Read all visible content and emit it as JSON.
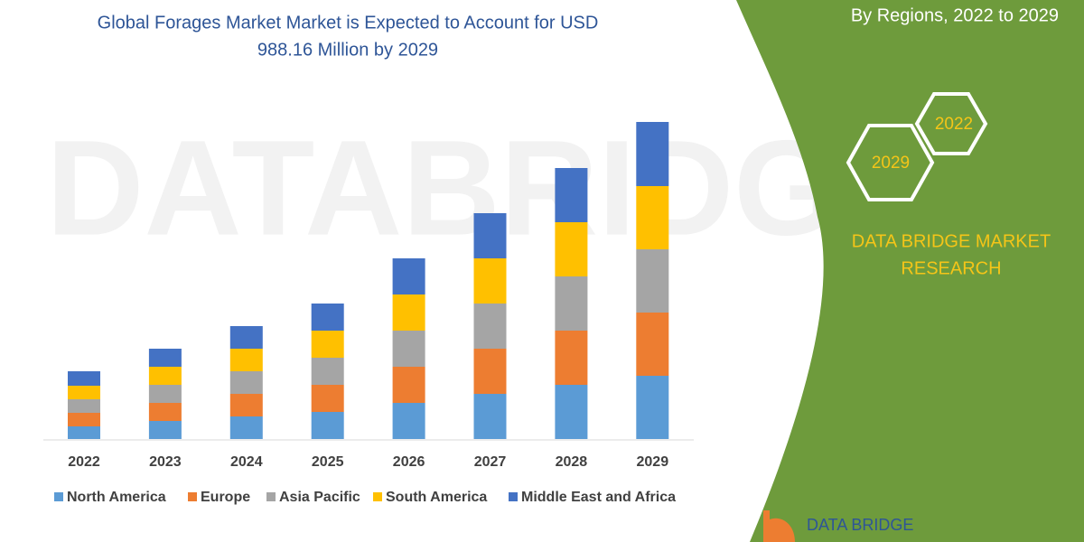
{
  "chart_data": {
    "type": "stacked-bar",
    "title": [
      "Global Forages Market Market is Expected to Account for USD",
      "988.16 Million by 2029"
    ],
    "categories": [
      "2022",
      "2023",
      "2024",
      "2025",
      "2026",
      "2027",
      "2028",
      "2029"
    ],
    "series": [
      {
        "name": "North America",
        "color": "#5b9bd5",
        "values": [
          14,
          20,
          25,
          30,
          40,
          50,
          60,
          70
        ]
      },
      {
        "name": "Europe",
        "color": "#ed7d31",
        "values": [
          15,
          20,
          25,
          30,
          40,
          50,
          60,
          70
        ]
      },
      {
        "name": "Asia Pacific",
        "color": "#a5a5a5",
        "values": [
          15,
          20,
          25,
          30,
          40,
          50,
          60,
          70
        ]
      },
      {
        "name": "South America",
        "color": "#ffc000",
        "values": [
          15,
          20,
          25,
          30,
          40,
          50,
          60,
          70
        ]
      },
      {
        "name": "Middle East and Africa",
        "color": "#4472c4",
        "values": [
          16,
          20,
          25,
          30,
          40,
          50,
          60,
          71
        ]
      }
    ]
  },
  "panel": {
    "subtitle": "By Regions, 2022 to 2029",
    "hex_labels": [
      "2022",
      "2029"
    ],
    "brand": [
      "DATA BRIDGE MARKET",
      "RESEARCH"
    ],
    "logo": "DATA BRIDGE"
  }
}
